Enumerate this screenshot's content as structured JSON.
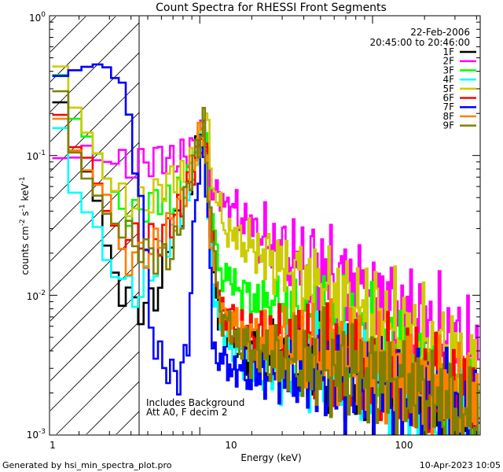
{
  "chart_data": {
    "type": "line",
    "title": "Count Spectra for RHESSI Front Segments",
    "xlabel": "Energy (keV)",
    "ylabel_main": "counts cm",
    "ylabel_exp1": "-2",
    "ylabel_mid": " s",
    "ylabel_exp2": "-1",
    "ylabel_end": " keV",
    "ylabel_exp3": "-1",
    "xscale": "log",
    "yscale": "log",
    "xlim": [
      1.35,
      420
    ],
    "ylim": [
      0.001,
      1.0
    ],
    "x_ticks": [
      {
        "value": 10,
        "label": "10"
      },
      {
        "value": 100,
        "label": "100"
      }
    ],
    "x_tick_first": {
      "value": 1,
      "label": "1"
    },
    "y_ticks": [
      {
        "value": 1.0,
        "base": "10",
        "exp": "0"
      },
      {
        "value": 0.1,
        "base": "10",
        "exp": "-1"
      },
      {
        "value": 0.01,
        "base": "10",
        "exp": "-2"
      },
      {
        "value": 0.001,
        "base": "10",
        "exp": "-3"
      }
    ],
    "hatched_region_upper_keV": 3.0,
    "legend_date": "22-Feb-2006",
    "legend_time": "20:45:00 to 20:46:00",
    "note_line1": "Includes Background",
    "note_line2": "Att A0, F decim 2",
    "footer_left": "Generated by hsi_min_spectra_plot.pro",
    "footer_right": "10-Apr-2023 10:05",
    "series": [
      {
        "name": "1F",
        "color": "#000000",
        "phase": 0.0
      },
      {
        "name": "2F",
        "color": "#ff00ff",
        "phase": 1.3
      },
      {
        "name": "3F",
        "color": "#00ff00",
        "phase": 2.1
      },
      {
        "name": "4F",
        "color": "#00ffff",
        "phase": 3.4
      },
      {
        "name": "5F",
        "color": "#cccc00",
        "phase": 4.2
      },
      {
        "name": "6F",
        "color": "#ff0000",
        "phase": 5.1
      },
      {
        "name": "7F",
        "color": "#0000ff",
        "phase": 6.3
      },
      {
        "name": "8F",
        "color": "#ff8000",
        "phase": 7.2
      },
      {
        "name": "9F",
        "color": "#808000",
        "phase": 8.5
      }
    ],
    "anchors": {
      "1F": [
        [
          1.4,
          0.4
        ],
        [
          1.8,
          0.12
        ],
        [
          2.2,
          0.08
        ],
        [
          2.6,
          0.045
        ],
        [
          3.0,
          0.018
        ],
        [
          3.6,
          0.0105
        ],
        [
          4.4,
          0.008
        ],
        [
          5.5,
          0.009
        ],
        [
          7,
          0.03
        ],
        [
          8.5,
          0.05
        ],
        [
          9.5,
          0.1
        ],
        [
          10.3,
          0.17
        ],
        [
          11,
          0.1
        ],
        [
          11.5,
          0.025
        ],
        [
          13,
          0.007
        ],
        [
          16,
          0.0045
        ],
        [
          20,
          0.004
        ],
        [
          30,
          0.0035
        ],
        [
          50,
          0.0032
        ],
        [
          80,
          0.0028
        ],
        [
          130,
          0.0022
        ],
        [
          200,
          0.0018
        ],
        [
          300,
          0.0013
        ],
        [
          400,
          0.0011
        ]
      ],
      "2F": [
        [
          1.4,
          0.1
        ],
        [
          1.8,
          0.09
        ],
        [
          2.2,
          0.12
        ],
        [
          2.6,
          0.09
        ],
        [
          3.0,
          0.09
        ],
        [
          4,
          0.08
        ],
        [
          5,
          0.09
        ],
        [
          6,
          0.1
        ],
        [
          7,
          0.09
        ],
        [
          8,
          0.1
        ],
        [
          9,
          0.11
        ],
        [
          10,
          0.13
        ],
        [
          10.6,
          0.16
        ],
        [
          11.5,
          0.065
        ],
        [
          13,
          0.05
        ],
        [
          16,
          0.04
        ],
        [
          20,
          0.03
        ],
        [
          30,
          0.02
        ],
        [
          50,
          0.015
        ],
        [
          80,
          0.011
        ],
        [
          130,
          0.008
        ],
        [
          200,
          0.006
        ],
        [
          300,
          0.0045
        ],
        [
          400,
          0.0035
        ]
      ],
      "3F": [
        [
          1.4,
          0.6
        ],
        [
          1.8,
          0.2
        ],
        [
          2.2,
          0.14
        ],
        [
          2.6,
          0.1
        ],
        [
          3.0,
          0.06
        ],
        [
          3.5,
          0.05
        ],
        [
          4,
          0.035
        ],
        [
          5,
          0.045
        ],
        [
          6,
          0.05
        ],
        [
          7,
          0.045
        ],
        [
          8,
          0.06
        ],
        [
          9,
          0.08
        ],
        [
          10,
          0.12
        ],
        [
          10.6,
          0.18
        ],
        [
          11.5,
          0.04
        ],
        [
          13,
          0.015
        ],
        [
          16,
          0.012
        ],
        [
          20,
          0.009
        ],
        [
          30,
          0.008
        ],
        [
          50,
          0.006
        ],
        [
          80,
          0.005
        ],
        [
          130,
          0.004
        ],
        [
          200,
          0.003
        ],
        [
          300,
          0.0025
        ],
        [
          400,
          0.0018
        ]
      ],
      "4F": [
        [
          1.4,
          0.32
        ],
        [
          1.8,
          0.06
        ],
        [
          2.2,
          0.04
        ],
        [
          2.6,
          0.03
        ],
        [
          3.0,
          0.015
        ],
        [
          3.5,
          0.012
        ],
        [
          4.5,
          0.01
        ],
        [
          6,
          0.02
        ],
        [
          8,
          0.04
        ],
        [
          10,
          0.12
        ],
        [
          10.5,
          0.15
        ],
        [
          11.5,
          0.02
        ],
        [
          13,
          0.006
        ],
        [
          16,
          0.004
        ],
        [
          20,
          0.0035
        ],
        [
          30,
          0.003
        ],
        [
          50,
          0.003
        ],
        [
          80,
          0.0028
        ],
        [
          130,
          0.0022
        ],
        [
          200,
          0.0018
        ],
        [
          300,
          0.0014
        ],
        [
          400,
          0.0012
        ]
      ],
      "5F": [
        [
          1.4,
          0.65
        ],
        [
          1.8,
          0.25
        ],
        [
          2.2,
          0.15
        ],
        [
          2.6,
          0.1
        ],
        [
          3.0,
          0.06
        ],
        [
          4,
          0.045
        ],
        [
          5,
          0.045
        ],
        [
          6,
          0.06
        ],
        [
          7,
          0.07
        ],
        [
          8,
          0.07
        ],
        [
          9,
          0.09
        ],
        [
          10,
          0.13
        ],
        [
          10.9,
          0.2
        ],
        [
          12,
          0.06
        ],
        [
          14,
          0.03
        ],
        [
          17,
          0.025
        ],
        [
          20,
          0.022
        ],
        [
          30,
          0.016
        ],
        [
          50,
          0.011
        ],
        [
          80,
          0.008
        ],
        [
          130,
          0.006
        ],
        [
          200,
          0.0045
        ],
        [
          300,
          0.0035
        ],
        [
          400,
          0.0027
        ]
      ],
      "6F": [
        [
          1.4,
          0.28
        ],
        [
          1.8,
          0.12
        ],
        [
          2.2,
          0.1
        ],
        [
          2.6,
          0.06
        ],
        [
          3.0,
          0.035
        ],
        [
          3.5,
          0.028
        ],
        [
          4,
          0.025
        ],
        [
          5,
          0.025
        ],
        [
          6,
          0.025
        ],
        [
          7,
          0.035
        ],
        [
          8,
          0.045
        ],
        [
          9,
          0.07
        ],
        [
          10,
          0.12
        ],
        [
          10.6,
          0.17
        ],
        [
          11.5,
          0.03
        ],
        [
          13,
          0.009
        ],
        [
          16,
          0.006
        ],
        [
          20,
          0.005
        ],
        [
          30,
          0.0045
        ],
        [
          50,
          0.004
        ],
        [
          80,
          0.0035
        ],
        [
          130,
          0.003
        ],
        [
          200,
          0.0024
        ],
        [
          300,
          0.0018
        ],
        [
          400,
          0.0015
        ]
      ],
      "7F": [
        [
          1.4,
          0.35
        ],
        [
          1.8,
          0.4
        ],
        [
          2.2,
          0.43
        ],
        [
          2.6,
          0.45
        ],
        [
          3.0,
          0.42
        ],
        [
          3.5,
          0.3
        ],
        [
          4,
          0.15
        ],
        [
          4.5,
          0.06
        ],
        [
          5,
          0.012
        ],
        [
          5.5,
          0.004
        ],
        [
          6.5,
          0.003
        ],
        [
          7.5,
          0.0025
        ],
        [
          8.5,
          0.004
        ],
        [
          9.5,
          0.05
        ],
        [
          10.3,
          0.12
        ],
        [
          11,
          0.06
        ],
        [
          12,
          0.004
        ],
        [
          15,
          0.003
        ],
        [
          20,
          0.0028
        ],
        [
          30,
          0.0028
        ],
        [
          50,
          0.0028
        ],
        [
          80,
          0.0025
        ],
        [
          130,
          0.0022
        ],
        [
          200,
          0.0018
        ],
        [
          300,
          0.0014
        ],
        [
          400,
          0.0011
        ]
      ],
      "8F": [
        [
          1.4,
          0.25
        ],
        [
          1.8,
          0.12
        ],
        [
          2.2,
          0.08
        ],
        [
          2.6,
          0.06
        ],
        [
          3.0,
          0.05
        ],
        [
          3.5,
          0.02
        ],
        [
          4,
          0.018
        ],
        [
          5,
          0.02
        ],
        [
          6,
          0.025
        ],
        [
          7,
          0.035
        ],
        [
          8,
          0.05
        ],
        [
          9,
          0.08
        ],
        [
          10,
          0.14
        ],
        [
          10.5,
          0.17
        ],
        [
          11.5,
          0.03
        ],
        [
          13,
          0.008
        ],
        [
          16,
          0.006
        ],
        [
          20,
          0.005
        ],
        [
          30,
          0.0045
        ],
        [
          50,
          0.004
        ],
        [
          80,
          0.0035
        ],
        [
          130,
          0.003
        ],
        [
          200,
          0.0024
        ],
        [
          300,
          0.002
        ],
        [
          400,
          0.0016
        ]
      ],
      "9F": [
        [
          1.4,
          0.55
        ],
        [
          1.8,
          0.12
        ],
        [
          2.2,
          0.07
        ],
        [
          2.6,
          0.05
        ],
        [
          3.0,
          0.035
        ],
        [
          3.5,
          0.03
        ],
        [
          4,
          0.025
        ],
        [
          5,
          0.02
        ],
        [
          6,
          0.018
        ],
        [
          7,
          0.02
        ],
        [
          8,
          0.04
        ],
        [
          9,
          0.08
        ],
        [
          10,
          0.13
        ],
        [
          10.6,
          0.17
        ],
        [
          11.5,
          0.035
        ],
        [
          13,
          0.008
        ],
        [
          16,
          0.005
        ],
        [
          20,
          0.004
        ],
        [
          30,
          0.0035
        ],
        [
          50,
          0.003
        ],
        [
          80,
          0.0028
        ],
        [
          130,
          0.0024
        ],
        [
          200,
          0.0019
        ],
        [
          300,
          0.0015
        ],
        [
          400,
          0.0012
        ]
      ]
    }
  }
}
